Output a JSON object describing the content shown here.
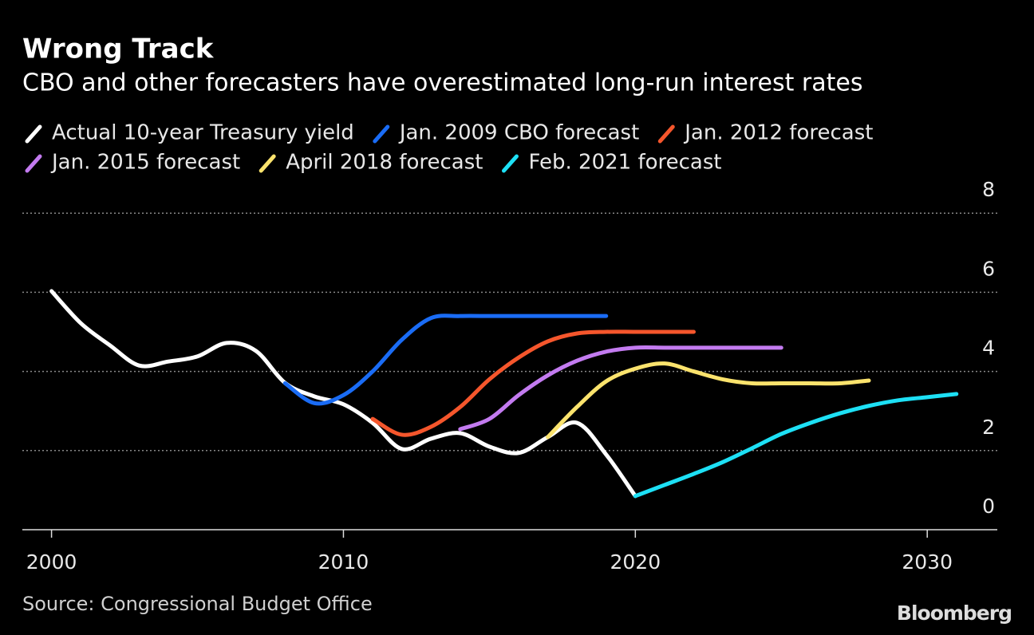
{
  "chart_data": {
    "type": "line",
    "title": "Wrong Track",
    "subtitle": "CBO and other forecasters have overestimated long-run interest rates",
    "source": "Source: Congressional Budget Office",
    "logo": "Bloomberg",
    "x": [
      2000,
      2001,
      2002,
      2003,
      2004,
      2005,
      2006,
      2007,
      2008,
      2009,
      2010,
      2011,
      2012,
      2013,
      2014,
      2015,
      2016,
      2017,
      2018,
      2019,
      2020,
      2021,
      2022,
      2023,
      2024,
      2025,
      2026,
      2027,
      2028,
      2029,
      2030,
      2031
    ],
    "series": [
      {
        "name": "Actual 10-year Treasury yield",
        "color": "#ffffff",
        "values": [
          6.03,
          5.22,
          4.66,
          4.15,
          4.25,
          4.38,
          4.72,
          4.52,
          3.71,
          3.37,
          3.17,
          2.7,
          2.04,
          2.3,
          2.44,
          2.1,
          1.94,
          2.34,
          2.7,
          1.9,
          0.85,
          null,
          null,
          null,
          null,
          null,
          null,
          null,
          null,
          null,
          null,
          null
        ]
      },
      {
        "name": "Jan. 2009 CBO forecast",
        "color": "#1a6cf5",
        "values": [
          null,
          null,
          null,
          null,
          null,
          null,
          null,
          null,
          3.7,
          3.2,
          3.4,
          4.0,
          4.8,
          5.35,
          5.4,
          5.4,
          5.4,
          5.4,
          5.4,
          5.4,
          null,
          null,
          null,
          null,
          null,
          null,
          null,
          null,
          null,
          null,
          null,
          null
        ]
      },
      {
        "name": "Jan. 2012 forecast",
        "color": "#f5562c",
        "values": [
          null,
          null,
          null,
          null,
          null,
          null,
          null,
          null,
          null,
          null,
          null,
          2.8,
          2.4,
          2.6,
          3.1,
          3.8,
          4.35,
          4.76,
          4.96,
          5.0,
          5.0,
          5.0,
          5.0,
          null,
          null,
          null,
          null,
          null,
          null,
          null,
          null,
          null
        ]
      },
      {
        "name": "Jan. 2015 forecast",
        "color": "#c37bf0",
        "values": [
          null,
          null,
          null,
          null,
          null,
          null,
          null,
          null,
          null,
          null,
          null,
          null,
          null,
          null,
          2.54,
          2.8,
          3.4,
          3.9,
          4.27,
          4.5,
          4.6,
          4.6,
          4.6,
          4.6,
          4.6,
          4.6,
          null,
          null,
          null,
          null,
          null,
          null
        ]
      },
      {
        "name": "April 2018 forecast",
        "color": "#fbe36d",
        "values": [
          null,
          null,
          null,
          null,
          null,
          null,
          null,
          null,
          null,
          null,
          null,
          null,
          null,
          null,
          null,
          null,
          null,
          2.34,
          3.1,
          3.75,
          4.07,
          4.2,
          4.0,
          3.8,
          3.7,
          3.7,
          3.7,
          3.7,
          3.77,
          null,
          null,
          null
        ]
      },
      {
        "name": "Feb. 2021 forecast",
        "color": "#1de0f5",
        "values": [
          null,
          null,
          null,
          null,
          null,
          null,
          null,
          null,
          null,
          null,
          null,
          null,
          null,
          null,
          null,
          null,
          null,
          null,
          null,
          null,
          0.85,
          1.13,
          1.41,
          1.71,
          2.06,
          2.42,
          2.7,
          2.94,
          3.13,
          3.27,
          3.35,
          3.43
        ]
      }
    ],
    "xlim": [
      1999,
      2032.4
    ],
    "xticks": [
      2000,
      2010,
      2020,
      2030
    ],
    "ylim": [
      0,
      8.6
    ],
    "yticks": [
      0,
      2,
      4,
      6,
      8
    ],
    "grid": true
  }
}
